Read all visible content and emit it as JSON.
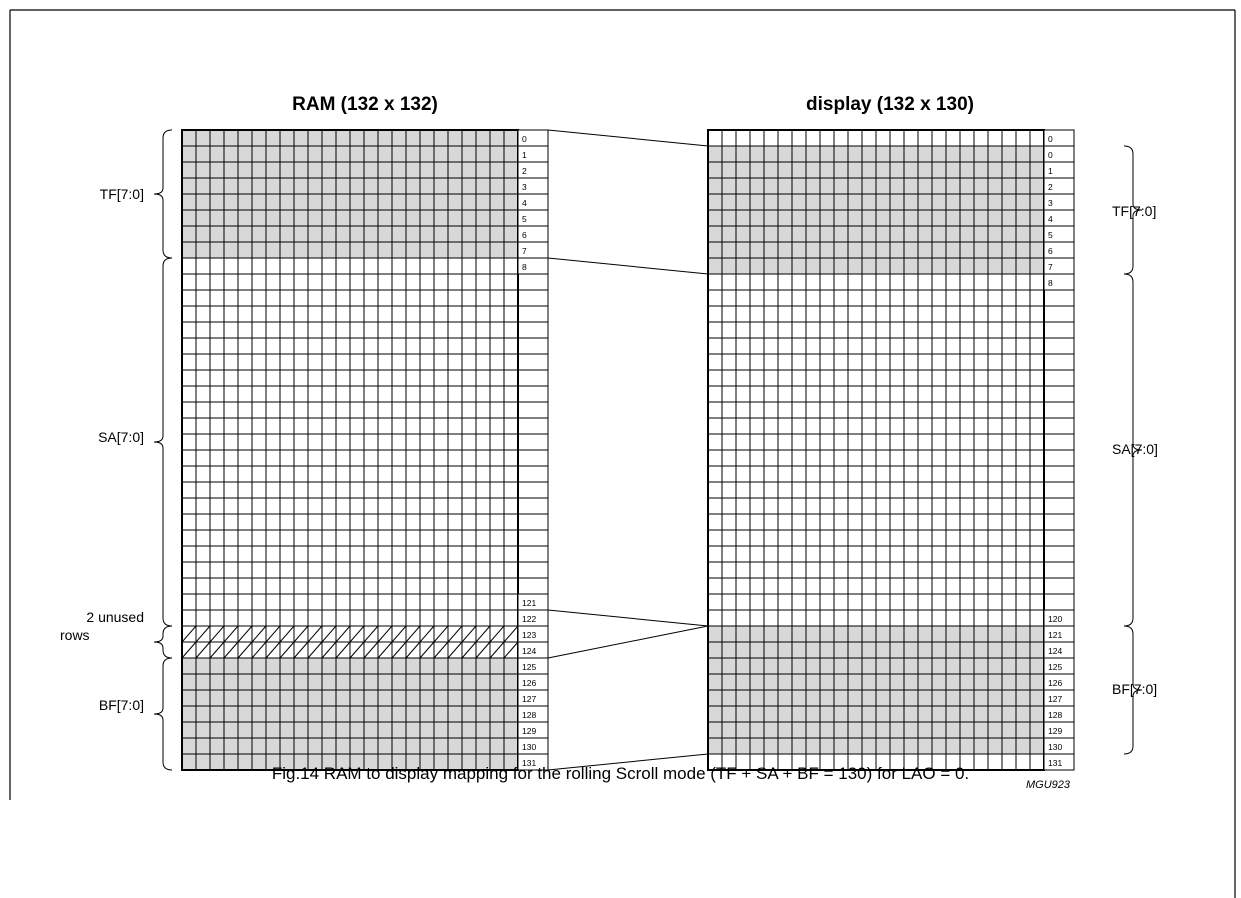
{
  "ram": {
    "title": "RAM (132 x 132)",
    "top_labels": [
      "0",
      "1",
      "2",
      "3",
      "4",
      "5",
      "6",
      "7",
      "8"
    ],
    "bottom_labels": [
      "121",
      "122",
      "123",
      "124",
      "125",
      "126",
      "127",
      "128",
      "129",
      "130",
      "131"
    ],
    "brackets": {
      "tf": "TF[7:0]",
      "sa": "SA[7:0]",
      "unused_line1": "2 unused",
      "unused_line2": "rows",
      "bf": "BF[7:0]"
    }
  },
  "display": {
    "title": "display (132 x 130)",
    "top_labels": [
      "0",
      "0",
      "1",
      "2",
      "3",
      "4",
      "5",
      "6",
      "7",
      "8"
    ],
    "bottom_labels": [
      "120",
      "121",
      "124",
      "125",
      "126",
      "127",
      "128",
      "129",
      "130",
      "131"
    ],
    "brackets": {
      "tf": "TF[7:0]",
      "sa": "SA[7:0]",
      "bf": "BF[7:0]"
    }
  },
  "reference": "MGU923",
  "caption": "Fig.14  RAM to display mapping for the rolling Scroll mode (TF + SA + BF = 130) for LAO = 0.",
  "colors": {
    "shaded": "#d8d8d8",
    "line": "#000000"
  }
}
